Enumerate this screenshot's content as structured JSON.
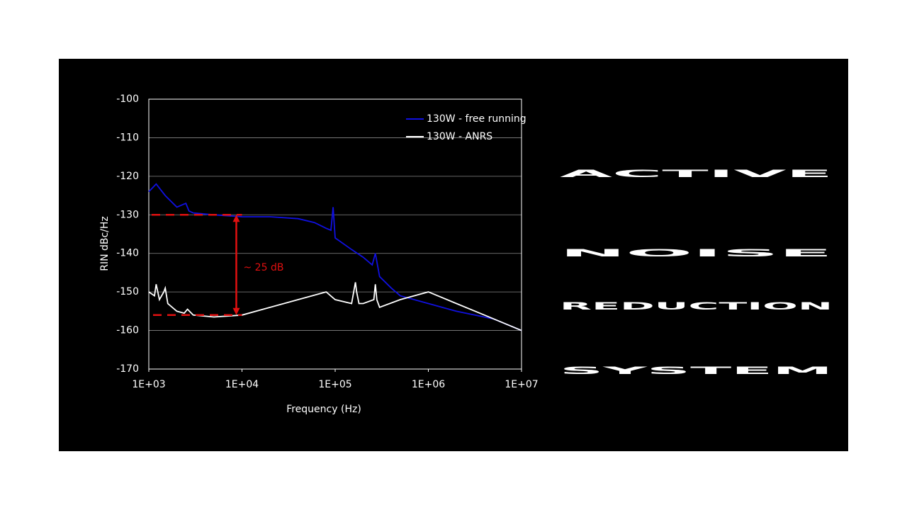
{
  "chart_data": {
    "type": "line",
    "ylabel": "RIN dBc/Hz",
    "xlabel": "Frequency (Hz)",
    "xscale": "log",
    "grid": true,
    "legend": "upper right",
    "xlim": [
      1000,
      10000000
    ],
    "xticks": [
      {
        "value": 1000,
        "label": "1E+03"
      },
      {
        "value": 10000,
        "label": "1E+04"
      },
      {
        "value": 100000,
        "label": "1E+05"
      },
      {
        "value": 1000000,
        "label": "1E+06"
      },
      {
        "value": 10000000,
        "label": "1E+07"
      }
    ],
    "ylim": [
      -170,
      -100
    ],
    "yticks": [
      -100,
      -110,
      -120,
      -130,
      -140,
      -150,
      -160,
      -170
    ],
    "series": [
      {
        "name": "130W - free running",
        "color": "#1010e0",
        "x": [
          1000,
          1200,
          1500,
          2000,
          2500,
          2700,
          3000,
          5000,
          10000,
          20000,
          40000,
          60000,
          80000,
          90000,
          95000,
          100000,
          150000,
          200000,
          250000,
          270000,
          300000,
          400000,
          500000,
          1000000,
          2000000,
          5000000,
          10000000
        ],
        "values": [
          -124,
          -122,
          -125,
          -128,
          -127,
          -129,
          -129.5,
          -130,
          -130.5,
          -130.5,
          -131,
          -132,
          -133.5,
          -134,
          -128,
          -136,
          -139,
          -141,
          -143,
          -140,
          -146,
          -149,
          -151,
          -153,
          -155,
          -157,
          -160
        ]
      },
      {
        "name": "130W - ANRS",
        "color": "#ffffff",
        "x": [
          1000,
          1150,
          1200,
          1300,
          1450,
          1500,
          1600,
          2000,
          2400,
          2600,
          3000,
          5000,
          10000,
          20000,
          40000,
          80000,
          100000,
          150000,
          165000,
          170000,
          180000,
          200000,
          260000,
          270000,
          280000,
          300000,
          500000,
          1000000,
          2000000,
          4000000,
          10000000
        ],
        "values": [
          -150,
          -151,
          -148,
          -152,
          -150,
          -149,
          -153,
          -155,
          -155.5,
          -154.5,
          -156,
          -156.5,
          -156,
          -154,
          -152,
          -150,
          -152,
          -153,
          -147.5,
          -150,
          -153,
          -153,
          -152,
          -148,
          -152,
          -154,
          -152,
          -150,
          -153,
          -156,
          -160
        ]
      }
    ],
    "annotation": {
      "text": "~ 25 dB",
      "x": 10000,
      "from": -156,
      "to": -130,
      "color": "#e01010"
    }
  },
  "headline": [
    "ACTIVE",
    "NOISE",
    "REDUCTION",
    "SYSTEM"
  ]
}
